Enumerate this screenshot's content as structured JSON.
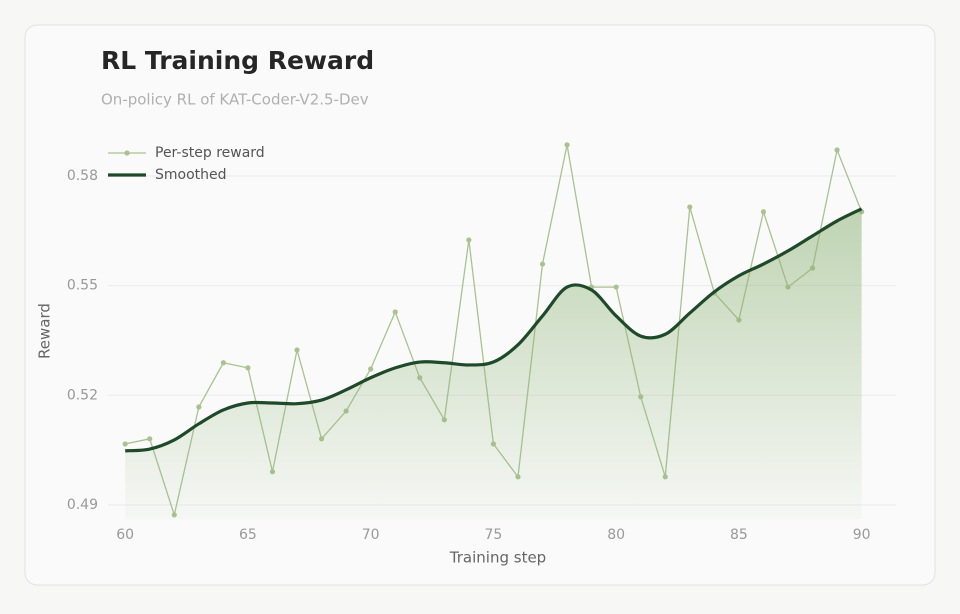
{
  "chart_data": {
    "type": "line",
    "title": "RL Training Reward",
    "subtitle": "On-policy RL of KAT-Coder-V2.5-Dev",
    "xlabel": "Training step",
    "ylabel": "Reward",
    "x": [
      60,
      61,
      62,
      63,
      64,
      65,
      66,
      67,
      68,
      69,
      70,
      71,
      72,
      73,
      74,
      75,
      76,
      77,
      78,
      79,
      80,
      81,
      82,
      83,
      84,
      85,
      86,
      87,
      88,
      89,
      90
    ],
    "series": [
      {
        "name": "Per-step reward",
        "color": "#a9c290",
        "markers": true,
        "values": [
          0.5067,
          0.5081,
          0.4873,
          0.5168,
          0.5289,
          0.5275,
          0.4991,
          0.5324,
          0.5081,
          0.5157,
          0.5272,
          0.5428,
          0.5248,
          0.5133,
          0.5625,
          0.5067,
          0.4977,
          0.5559,
          0.5885,
          0.5496,
          0.5496,
          0.5196,
          0.4977,
          0.5715,
          0.548,
          0.5406,
          0.5702,
          0.5496,
          0.5548,
          0.5871,
          0.5702
        ]
      },
      {
        "name": "Smoothed",
        "color": "#1f4a2a",
        "smooth": true,
        "area_color": "#8fb478",
        "values": [
          0.5048,
          0.5053,
          0.5078,
          0.5122,
          0.516,
          0.5179,
          0.5179,
          0.5177,
          0.5187,
          0.5215,
          0.5248,
          0.5275,
          0.5291,
          0.5289,
          0.5283,
          0.5291,
          0.5338,
          0.5417,
          0.5496,
          0.5488,
          0.5417,
          0.5362,
          0.5367,
          0.5425,
          0.5483,
          0.5527,
          0.5559,
          0.5595,
          0.5636,
          0.5677,
          0.571
        ]
      }
    ],
    "xlim": [
      59.3,
      91.4
    ],
    "xticks": [
      60,
      65,
      70,
      75,
      80,
      85,
      90
    ],
    "ylim": [
      0.486,
      0.59
    ],
    "yticks": [
      0.49,
      0.52,
      0.55,
      0.58
    ],
    "grid": true,
    "legend": "upper left"
  }
}
